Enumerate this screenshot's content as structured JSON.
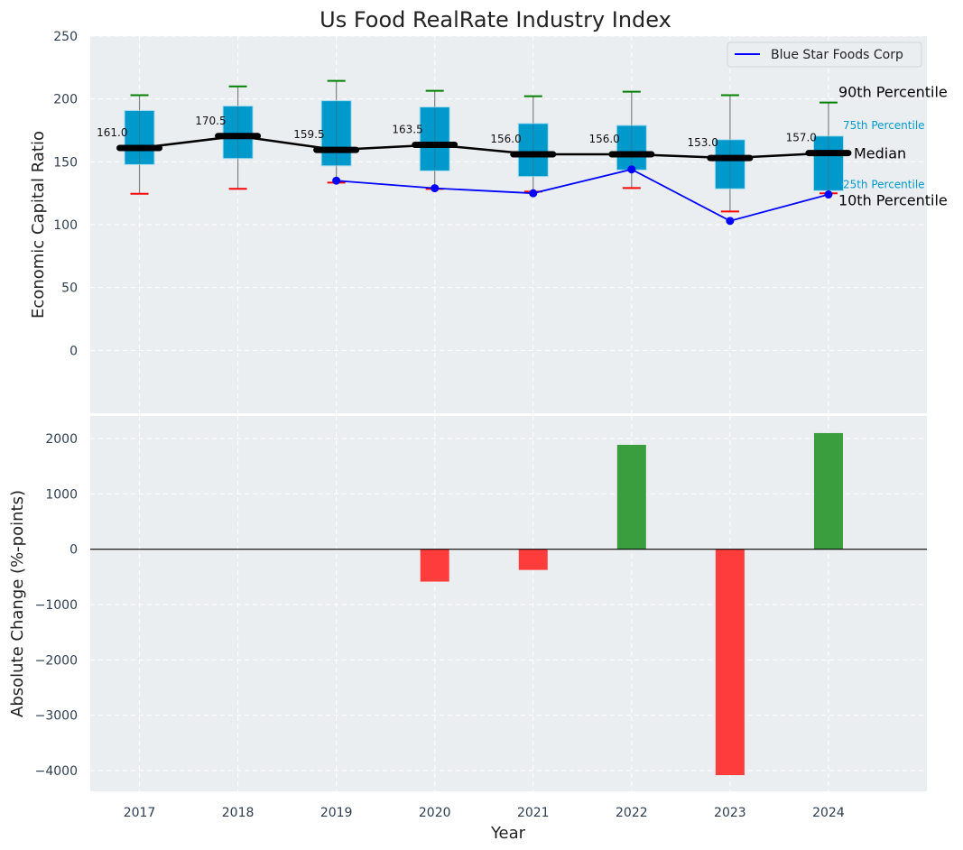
{
  "chart_data": [
    {
      "type": "box",
      "title": "Us Food RealRate Industry Index",
      "ylabel": "Economic Capital Ratio",
      "xlabel": "",
      "ylim": [
        -50,
        250
      ],
      "xlim": [
        2016.5,
        2025
      ],
      "yticks": [
        0,
        50,
        100,
        150,
        200,
        250
      ],
      "grid": true,
      "categories": [
        2017,
        2018,
        2019,
        2020,
        2021,
        2022,
        2023,
        2024
      ],
      "p90": [
        203,
        210,
        214.4,
        206.5,
        202.2,
        205.8,
        203,
        197.2
      ],
      "q3": [
        190.8,
        194.4,
        198.6,
        193.6,
        180.5,
        179,
        167.6,
        170.5
      ],
      "median": [
        161.0,
        170.5,
        159.5,
        163.5,
        156.0,
        156.0,
        153.0,
        157.0
      ],
      "median_labels": [
        "161.0",
        "170.5",
        "159.5",
        "163.5",
        "156.0",
        "156.0",
        "153.0",
        "157.0"
      ],
      "q1": [
        147.8,
        152.6,
        146.8,
        142.8,
        138.3,
        143.5,
        128.5,
        127
      ],
      "p10": [
        124.6,
        128.5,
        133.5,
        128.4,
        126.3,
        129.2,
        110.5,
        124.9
      ],
      "company": {
        "name": "Blue Star Foods Corp",
        "x": [
          2019,
          2020,
          2021,
          2022,
          2023,
          2024
        ],
        "values": [
          135,
          129,
          125,
          144,
          103,
          124
        ]
      },
      "legend": {
        "placement": "top-right",
        "entries": [
          "Blue Star Foods Corp"
        ]
      },
      "annotations": {
        "p90": "90th Percentile",
        "q3": "75th Percentile",
        "median": "Median",
        "q1": "25th Percentile",
        "p10": "10th Percentile"
      },
      "colors": {
        "box": "#0099cc",
        "median": "#000000",
        "p90": "#008000",
        "p10": "#ff0000",
        "company": "#0000ff",
        "bg": "#eaeef0"
      }
    },
    {
      "type": "bar",
      "ylabel": "Absolute Change (%-points)",
      "xlabel": "Year",
      "ylim": [
        -4374,
        2407
      ],
      "xlim": [
        2016.5,
        2025
      ],
      "yticks": [
        -4000,
        -3000,
        -2000,
        -1000,
        0,
        1000,
        2000
      ],
      "ytick_labels": [
        "−4000",
        "−3000",
        "−2000",
        "−1000",
        "0",
        "1000",
        "2000"
      ],
      "categories": [
        2017,
        2018,
        2019,
        2020,
        2021,
        2022,
        2023,
        2024
      ],
      "xtick_labels": [
        "2017",
        "2018",
        "2019",
        "2020",
        "2021",
        "2022",
        "2023",
        "2024"
      ],
      "values": [
        null,
        null,
        null,
        -585,
        -374,
        1886,
        -4081,
        2098
      ],
      "colors": {
        "positive": "#3a9e3e",
        "negative": "#ff3c3c"
      }
    }
  ]
}
